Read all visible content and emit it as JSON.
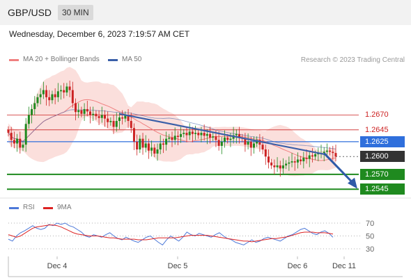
{
  "header": {
    "pair": "GBP/USD",
    "timeframe": "30 MIN"
  },
  "datetime": "Wednesday, December 6, 2023 7:19:57 AM CET",
  "legend": {
    "ma20": "MA 20 + Bollinger Bands",
    "ma50": "MA 50",
    "rsi": "RSI",
    "rsi_ma": "9MA"
  },
  "copyright": "Research © 2023 Trading Central",
  "colors": {
    "ma20": "#f08080",
    "bands": "#f9d4d0",
    "ma50": "#3a5fa8",
    "support": "#1f8a1f",
    "pivot": "#2f6fdc",
    "resistance": "#cc2222",
    "last": "#333333",
    "candle_up": "#1f8a1f",
    "candle_down": "#cc2222",
    "rsi": "#4c78d8",
    "rsi_ma": "#dd2222"
  },
  "chart_data": [
    {
      "type": "candlestick",
      "y_min": 1.253,
      "y_max": 1.2735,
      "x_labels": [
        "Dec 4",
        "Dec 5",
        "Dec 6",
        "Dec 11"
      ],
      "levels": [
        {
          "value": 1.267,
          "label": "1.2670",
          "kind": "resistance"
        },
        {
          "value": 1.2645,
          "label": "1.2645",
          "kind": "resistance"
        },
        {
          "value": 1.2625,
          "label": "1.2625",
          "kind": "pivot"
        },
        {
          "value": 1.26,
          "label": "1.2600",
          "kind": "last"
        },
        {
          "value": 1.257,
          "label": "1.2570",
          "kind": "support"
        },
        {
          "value": 1.2545,
          "label": "1.2545",
          "kind": "support"
        }
      ],
      "close": [
        1.264,
        1.2628,
        1.2622,
        1.263,
        1.2615,
        1.262,
        1.2655,
        1.267,
        1.268,
        1.269,
        1.27,
        1.2705,
        1.2712,
        1.27,
        1.2695,
        1.2705,
        1.27,
        1.271,
        1.2712,
        1.2708,
        1.2718,
        1.2712,
        1.269,
        1.2675,
        1.2678,
        1.2672,
        1.268,
        1.2676,
        1.267,
        1.2672,
        1.2668,
        1.2665,
        1.267,
        1.2664,
        1.2658,
        1.266,
        1.265,
        1.266,
        1.2666,
        1.2664,
        1.267,
        1.266,
        1.2648,
        1.2625,
        1.2612,
        1.263,
        1.2615,
        1.2622,
        1.261,
        1.2615,
        1.2605,
        1.2612,
        1.2622,
        1.262,
        1.263,
        1.2632,
        1.2628,
        1.2635,
        1.2633,
        1.2638,
        1.264,
        1.2636,
        1.2642,
        1.2638,
        1.264,
        1.2636,
        1.264,
        1.2635,
        1.2638,
        1.2632,
        1.2634,
        1.2628,
        1.2618,
        1.2625,
        1.2632,
        1.2628,
        1.263,
        1.2636,
        1.2638,
        1.2632,
        1.263,
        1.262,
        1.2625,
        1.2615,
        1.2622,
        1.2628,
        1.262,
        1.2612,
        1.26,
        1.259,
        1.2585,
        1.2582,
        1.2585,
        1.258,
        1.2585,
        1.2588,
        1.259,
        1.2592,
        1.259,
        1.2595,
        1.2592,
        1.2598,
        1.2596,
        1.2602,
        1.26,
        1.2604,
        1.2605,
        1.2606,
        1.2608,
        1.261,
        1.2608,
        1.2606,
        1.26
      ],
      "ma50_trend": {
        "label": "MA 50 trend",
        "points": [
          [
            38,
            1.2672
          ],
          [
            108,
            1.2604
          ]
        ]
      },
      "forecast_arrow": {
        "from": 108,
        "to": 1.2548
      }
    },
    {
      "type": "line",
      "y_ticks": [
        70,
        50,
        30
      ],
      "series": [
        {
          "name": "RSI",
          "values": [
            45,
            42,
            50,
            55,
            58,
            62,
            66,
            62,
            60,
            62,
            68,
            66,
            70,
            68,
            70,
            66,
            64,
            60,
            56,
            50,
            48,
            52,
            50,
            48,
            52,
            55,
            50,
            46,
            44,
            48,
            45,
            42,
            40,
            44,
            48,
            50,
            45,
            40,
            36,
            44,
            50,
            46,
            42,
            48,
            56,
            52,
            50,
            54,
            52,
            50,
            48,
            52,
            55,
            50,
            46,
            44,
            40,
            38,
            36,
            40,
            44,
            40,
            42,
            46,
            48,
            46,
            44,
            42,
            46,
            50,
            52,
            56,
            60,
            62,
            58,
            54,
            52,
            56,
            58,
            54,
            48
          ]
        },
        {
          "name": "9MA",
          "values": [
            52,
            50,
            48,
            50,
            54,
            58,
            62,
            64,
            65,
            66,
            67,
            67,
            66,
            64,
            61,
            58,
            55,
            53,
            52,
            51,
            50,
            50,
            50,
            49,
            48,
            47,
            47,
            46,
            45,
            45,
            45,
            45,
            44,
            44,
            44,
            45,
            46,
            47,
            47,
            47,
            47,
            47,
            48,
            49,
            50,
            51,
            51,
            51,
            51,
            51,
            50,
            49,
            48,
            47,
            46,
            45,
            44,
            43,
            42,
            42,
            41,
            42,
            43,
            44,
            45,
            46,
            46,
            47,
            48,
            49,
            51,
            53,
            55,
            56,
            56,
            56,
            55,
            55,
            55,
            54,
            53
          ]
        }
      ]
    }
  ]
}
